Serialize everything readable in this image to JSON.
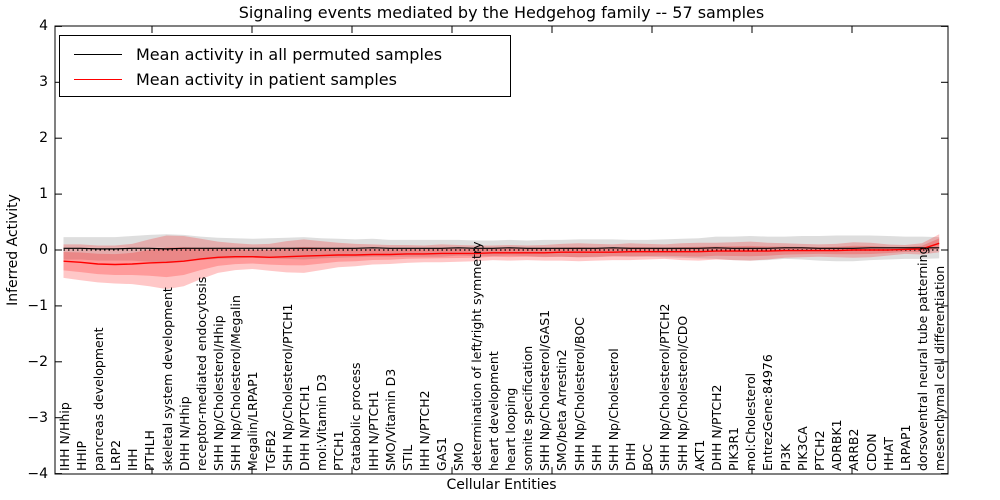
{
  "title": "Signaling events mediated by the Hedgehog family -- 57 samples",
  "axes": {
    "ylabel": "Inferred Activity",
    "xlabel": "Cellular Entities",
    "ylim": [
      -4,
      4
    ],
    "yticks": [
      "4",
      "3",
      "2",
      "1",
      "0",
      "−1",
      "−2",
      "−3",
      "−4"
    ]
  },
  "legend": {
    "items": [
      {
        "label": "Mean activity in all permuted samples",
        "color": "#000000"
      },
      {
        "label": "Mean activity in patient samples",
        "color": "#ff0000"
      }
    ]
  },
  "chart_data": {
    "type": "line",
    "title": "Signaling events mediated by the Hedgehog family -- 57 samples",
    "xlabel": "Cellular Entities",
    "ylabel": "Inferred Activity",
    "ylim": [
      -4,
      4
    ],
    "grid": false,
    "legend_position": "upper left",
    "reference_line": {
      "y": 0,
      "style": "dotted",
      "color": "#000000"
    },
    "band_meaning": "shaded region = mean ± std; inner darker red = mean ± 0.55 std",
    "categories": [
      "IHH N/Hhip",
      "HHIP",
      "pancreas development",
      "LRP2",
      "IHH",
      "PTHLH",
      "skeletal system development",
      "DHH N/Hhip",
      "receptor-mediated endocytosis",
      "SHH Np/Cholesterol/Hhip",
      "SHH Np/Cholesterol/Megalin",
      "Megalin/LRPAP1",
      "TGFB2",
      "SHH Np/Cholesterol/PTCH1",
      "DHH N/PTCH1",
      "mol:Vitamin D3",
      "PTCH1",
      "catabolic process",
      "IHH N/PTCH1",
      "SMO/Vitamin D3",
      "STIL",
      "IHH N/PTCH2",
      "GAS1",
      "SMO",
      "determination of left/right symmetry",
      "heart development",
      "heart looping",
      "somite specification",
      "SHH Np/Cholesterol/GAS1",
      "SMO/beta Arrestin2",
      "SHH Np/Cholesterol/BOC",
      "SHH",
      "SHH Np/Cholesterol",
      "DHH",
      "BOC",
      "SHH Np/Cholesterol/PTCH2",
      "SHH Np/Cholesterol/CDO",
      "AKT1",
      "DHH N/PTCH2",
      "PIK3R1",
      "mol:Cholesterol",
      "EntrezGene:84976",
      "PI3K",
      "PIK3CA",
      "PTCH2",
      "ADRBK1",
      "ARRB2",
      "CDON",
      "HHAT",
      "LRPAP1",
      "dorsoventral neural tube patterning",
      "mesenchymal cell differentiation"
    ],
    "series": [
      {
        "name": "Mean activity in all permuted samples",
        "color": "#000000",
        "values": [
          0.03,
          0.03,
          0.02,
          0.02,
          0.03,
          0.03,
          0.02,
          0.03,
          0.03,
          0.03,
          0.03,
          0.03,
          0.03,
          0.03,
          0.03,
          0.03,
          0.03,
          0.03,
          0.04,
          0.03,
          0.03,
          0.03,
          0.03,
          0.04,
          0.03,
          0.03,
          0.04,
          0.03,
          0.03,
          0.03,
          0.03,
          0.03,
          0.04,
          0.03,
          0.03,
          0.03,
          0.03,
          0.03,
          0.04,
          0.03,
          0.03,
          0.03,
          0.04,
          0.04,
          0.03,
          0.03,
          0.03,
          0.04,
          0.04,
          0.04,
          0.04,
          0.04
        ],
        "band_std": [
          0.2,
          0.2,
          0.21,
          0.21,
          0.22,
          0.24,
          0.26,
          0.24,
          0.21,
          0.19,
          0.18,
          0.17,
          0.18,
          0.19,
          0.2,
          0.18,
          0.17,
          0.16,
          0.16,
          0.15,
          0.15,
          0.15,
          0.15,
          0.14,
          0.14,
          0.14,
          0.14,
          0.14,
          0.15,
          0.15,
          0.16,
          0.16,
          0.15,
          0.15,
          0.15,
          0.16,
          0.17,
          0.18,
          0.2,
          0.21,
          0.22,
          0.21,
          0.2,
          0.21,
          0.22,
          0.23,
          0.23,
          0.22,
          0.21,
          0.2,
          0.2,
          0.19
        ]
      },
      {
        "name": "Mean activity in patient samples",
        "color": "#ff0000",
        "values": [
          -0.2,
          -0.22,
          -0.25,
          -0.26,
          -0.25,
          -0.23,
          -0.22,
          -0.2,
          -0.16,
          -0.13,
          -0.12,
          -0.12,
          -0.13,
          -0.12,
          -0.11,
          -0.1,
          -0.09,
          -0.09,
          -0.08,
          -0.08,
          -0.07,
          -0.07,
          -0.06,
          -0.06,
          -0.06,
          -0.05,
          -0.05,
          -0.05,
          -0.05,
          -0.04,
          -0.04,
          -0.04,
          -0.04,
          -0.03,
          -0.03,
          -0.03,
          -0.03,
          -0.03,
          -0.02,
          -0.02,
          -0.02,
          -0.02,
          -0.01,
          -0.01,
          -0.01,
          -0.01,
          0.0,
          0.0,
          0.0,
          0.01,
          0.02,
          0.12
        ],
        "band_std": [
          0.3,
          0.32,
          0.33,
          0.34,
          0.36,
          0.42,
          0.48,
          0.45,
          0.36,
          0.28,
          0.24,
          0.22,
          0.24,
          0.28,
          0.3,
          0.26,
          0.22,
          0.2,
          0.18,
          0.17,
          0.16,
          0.15,
          0.16,
          0.15,
          0.14,
          0.13,
          0.14,
          0.13,
          0.14,
          0.15,
          0.16,
          0.15,
          0.14,
          0.15,
          0.14,
          0.13,
          0.15,
          0.16,
          0.15,
          0.16,
          0.17,
          0.15,
          0.13,
          0.12,
          0.11,
          0.12,
          0.14,
          0.13,
          0.1,
          0.08,
          0.1,
          0.16
        ]
      }
    ]
  }
}
